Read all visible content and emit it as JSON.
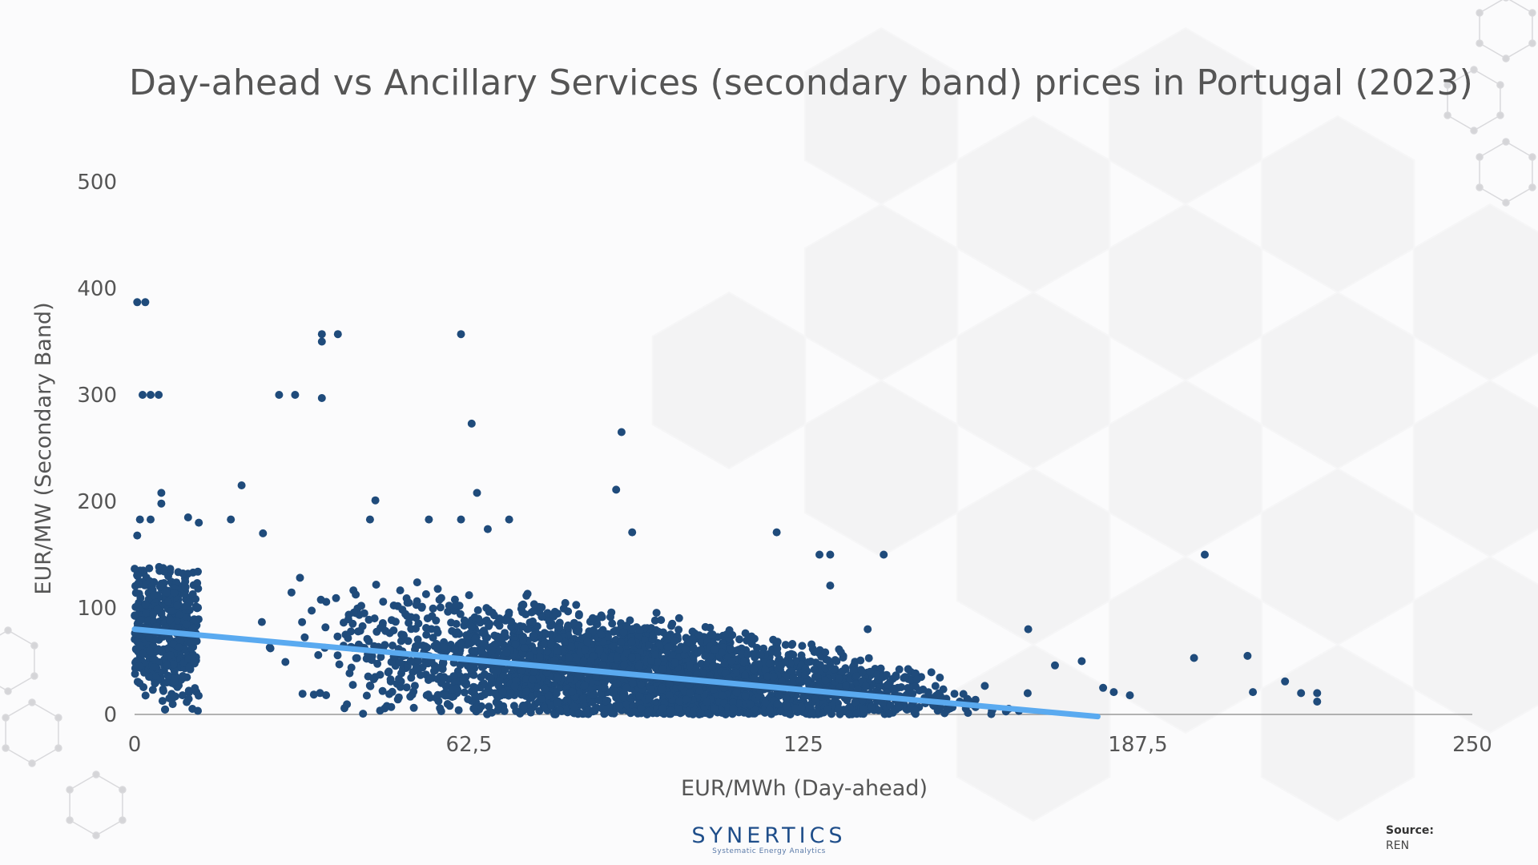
{
  "title": "Day-ahead vs Ancillary Services (secondary band) prices in Portugal (2023)",
  "logo": {
    "name": "SYNERTICS",
    "tagline": "Systematic Energy Analytics"
  },
  "source": {
    "label": "Source:",
    "value": "REN"
  },
  "colors": {
    "points": "#1f4b7b",
    "trend": "#5aaaf0",
    "axis_text": "#555555"
  },
  "chart_data": {
    "type": "scatter",
    "title": "Day-ahead vs Ancillary Services (secondary band) prices in Portugal (2023)",
    "xlabel": "EUR/MWh (Day-ahead)",
    "ylabel": "EUR/MW (Secondary Band)",
    "xlim": [
      0,
      250
    ],
    "ylim": [
      0,
      500
    ],
    "x_ticks": [
      "0",
      "62,5",
      "125",
      "187,5",
      "250"
    ],
    "y_ticks": [
      "0",
      "100",
      "200",
      "300",
      "400",
      "500"
    ],
    "grid": false,
    "legend": "none",
    "trendline": {
      "type": "linear",
      "points": [
        [
          0,
          80
        ],
        [
          180,
          -2
        ]
      ]
    },
    "outliers": [
      [
        0.5,
        387
      ],
      [
        2,
        387
      ],
      [
        1.5,
        300
      ],
      [
        3,
        300
      ],
      [
        4.5,
        300
      ],
      [
        35,
        357
      ],
      [
        35,
        350
      ],
      [
        38,
        357
      ],
      [
        61,
        357
      ],
      [
        27,
        300
      ],
      [
        30,
        300
      ],
      [
        35,
        297
      ],
      [
        63,
        273
      ],
      [
        91,
        265
      ],
      [
        1,
        183
      ],
      [
        3,
        183
      ],
      [
        0.5,
        168
      ],
      [
        5,
        198
      ],
      [
        5,
        208
      ],
      [
        20,
        215
      ],
      [
        45,
        201
      ],
      [
        90,
        211
      ],
      [
        64,
        208
      ],
      [
        10,
        185
      ],
      [
        12,
        180
      ],
      [
        18,
        183
      ],
      [
        24,
        170
      ],
      [
        44,
        183
      ],
      [
        55,
        183
      ],
      [
        61,
        183
      ],
      [
        70,
        183
      ],
      [
        66,
        174
      ],
      [
        93,
        171
      ],
      [
        120,
        171
      ],
      [
        128,
        150
      ],
      [
        130,
        150
      ],
      [
        130,
        121
      ],
      [
        140,
        150
      ],
      [
        200,
        150
      ],
      [
        137,
        80
      ],
      [
        167,
        80
      ],
      [
        198,
        53
      ],
      [
        208,
        55
      ],
      [
        215,
        31
      ],
      [
        209,
        21
      ],
      [
        218,
        20
      ],
      [
        221,
        20
      ],
      [
        221,
        12
      ],
      [
        186,
        18
      ],
      [
        181,
        25
      ],
      [
        183,
        21
      ],
      [
        172,
        46
      ],
      [
        177,
        50
      ]
    ],
    "density": {
      "description": "Dense cloud of ~8,700 hourly points concentrated between 0 and 170 EUR/MWh day-ahead and 0 to 150 EUR/MW secondary band, declining with day-ahead price.",
      "x_range": [
        0,
        170
      ],
      "upper_envelope": [
        [
          0,
          140
        ],
        [
          40,
          130
        ],
        [
          80,
          120
        ],
        [
          110,
          100
        ],
        [
          130,
          80
        ],
        [
          150,
          60
        ],
        [
          165,
          35
        ],
        [
          175,
          20
        ]
      ]
    }
  }
}
